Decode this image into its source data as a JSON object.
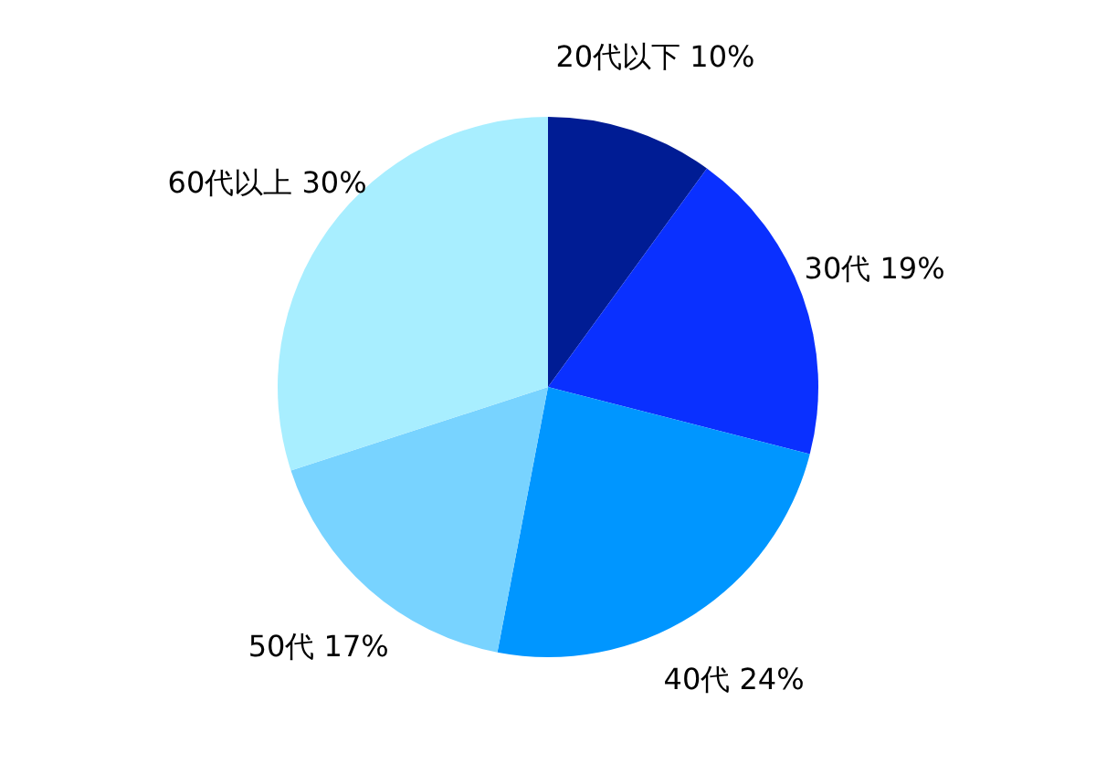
{
  "chart_data": {
    "type": "pie",
    "categories": [
      "20代以下",
      "30代",
      "40代",
      "50代",
      "60代以上"
    ],
    "values": [
      10,
      19,
      24,
      17,
      30
    ],
    "value_labels": [
      "10%",
      "19%",
      "24%",
      "17%",
      "30%"
    ],
    "colors": [
      "#001c94",
      "#0a30ff",
      "#0096ff",
      "#78d3ff",
      "#a8eeff"
    ]
  }
}
